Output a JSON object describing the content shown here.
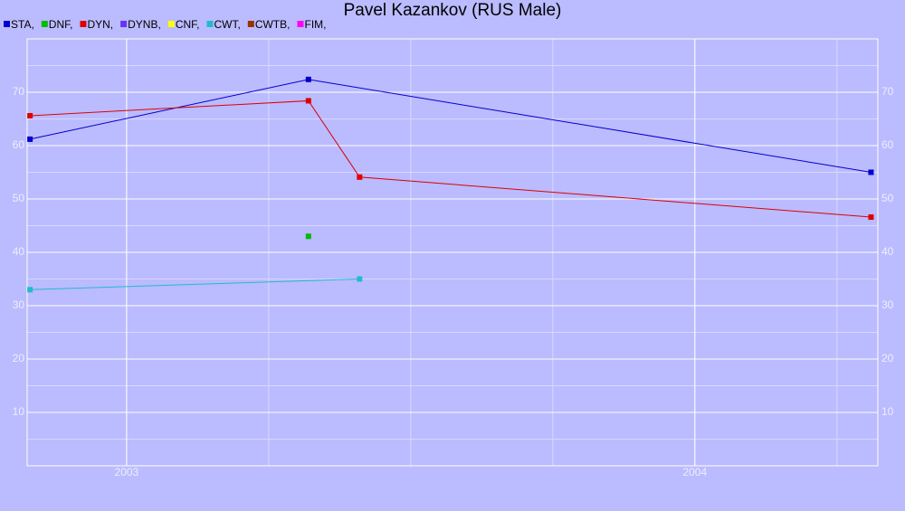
{
  "chart_data": {
    "type": "line",
    "title": "Pavel Kazankov (RUS Male)",
    "xlim": [
      2002.825,
      2004.322
    ],
    "xticks": [
      2003,
      2004
    ],
    "ylim": [
      0,
      80
    ],
    "yticks": [
      10,
      20,
      30,
      40,
      50,
      60,
      70
    ],
    "grid": true,
    "series": [
      {
        "name": "STA,",
        "color": "#0000cc",
        "x": [
          2002.83,
          2003.32,
          2004.31
        ],
        "values": [
          61.2,
          72.4,
          55.0
        ]
      },
      {
        "name": "DNF,",
        "color": "#00bb00",
        "x": [
          2003.32
        ],
        "values": [
          43.0
        ]
      },
      {
        "name": "DYN,",
        "color": "#dd0000",
        "x": [
          2002.83,
          2003.32,
          2003.41,
          2004.31
        ],
        "values": [
          65.6,
          68.4,
          54.1,
          46.6
        ]
      },
      {
        "name": "DYNB,",
        "color": "#6633ff",
        "x": [],
        "values": []
      },
      {
        "name": "CNF,",
        "color": "#ffff00",
        "x": [],
        "values": []
      },
      {
        "name": "CWT,",
        "color": "#22bbcc",
        "x": [
          2002.83,
          2003.41
        ],
        "values": [
          33.0,
          35.0
        ]
      },
      {
        "name": "CWTB,",
        "color": "#993300",
        "x": [],
        "values": []
      },
      {
        "name": "FIM,",
        "color": "#ff00ff",
        "x": [],
        "values": []
      }
    ]
  }
}
